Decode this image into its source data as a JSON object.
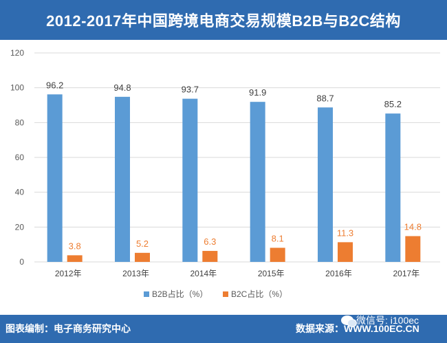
{
  "header": {
    "title": "2012-2017年中国跨境电商交易规模B2B与B2C结构"
  },
  "footer": {
    "compiled_by": "图表编制：电子商务研究中心",
    "source": "数据来源：WWW.100EC.CN"
  },
  "watermark": {
    "text": "微信号: i100ec"
  },
  "colors": {
    "b2b": "#5b9bd5",
    "b2c": "#ed7d31",
    "header": "#2f6bb0"
  },
  "chart_data": {
    "type": "bar",
    "categories": [
      "2012年",
      "2013年",
      "2014年",
      "2015年",
      "2016年",
      "2017年"
    ],
    "series": [
      {
        "name": "B2B占比（%）",
        "values": [
          96.2,
          94.8,
          93.7,
          91.9,
          88.7,
          85.2
        ],
        "labels": [
          "96.2",
          "94.8",
          "93.7",
          "91.9",
          "88.7",
          "85.2"
        ]
      },
      {
        "name": "B2C占比（%）",
        "values": [
          3.8,
          5.2,
          6.3,
          8.1,
          11.3,
          14.8
        ],
        "labels": [
          "3.8",
          "5.2",
          "6.3",
          "8.1",
          "11.3",
          "14.8"
        ]
      }
    ],
    "ylim": [
      0,
      120
    ],
    "yticks": [
      "0",
      "20",
      "40",
      "60",
      "80",
      "100",
      "120"
    ],
    "ytick_values": [
      0,
      20,
      40,
      60,
      80,
      100,
      120
    ],
    "grid": true,
    "legend": "bottom"
  }
}
